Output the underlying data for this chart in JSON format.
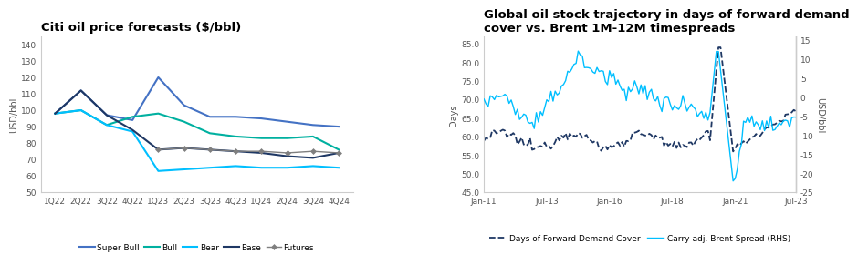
{
  "chart1": {
    "title": "Citi oil price forecasts ($/bbl)",
    "ylabel": "USD/bbl",
    "ylim": [
      50,
      145
    ],
    "yticks": [
      50,
      60,
      70,
      80,
      90,
      100,
      110,
      120,
      130,
      140
    ],
    "xlabels": [
      "1Q22",
      "2Q22",
      "3Q22",
      "4Q22",
      "1Q23",
      "2Q23",
      "3Q23",
      "4Q23",
      "1Q24",
      "2Q24",
      "3Q24",
      "4Q24"
    ],
    "series": {
      "Super Bull": {
        "color": "#4472C4",
        "values": [
          98,
          112,
          97,
          94,
          120,
          103,
          96,
          96,
          95,
          93,
          91,
          90
        ],
        "linestyle": "-",
        "marker": null,
        "linewidth": 1.5
      },
      "Bull": {
        "color": "#00B0A0",
        "values": [
          98,
          100,
          91,
          96,
          98,
          93,
          86,
          84,
          83,
          83,
          84,
          76
        ],
        "linestyle": "-",
        "marker": null,
        "linewidth": 1.5
      },
      "Bear": {
        "color": "#00BFFF",
        "values": [
          98,
          100,
          91,
          87,
          63,
          64,
          65,
          66,
          65,
          65,
          66,
          65
        ],
        "linestyle": "-",
        "marker": null,
        "linewidth": 1.5
      },
      "Base": {
        "color": "#1F3864",
        "values": [
          98,
          112,
          97,
          88,
          76,
          77,
          76,
          75,
          74,
          72,
          71,
          74
        ],
        "linestyle": "-",
        "marker": null,
        "linewidth": 1.5
      },
      "Futures": {
        "color": "#7F7F7F",
        "values": [
          null,
          null,
          null,
          null,
          76,
          77,
          76,
          75,
          75,
          74,
          75,
          74
        ],
        "linestyle": "-",
        "marker": "D",
        "markersize": 3,
        "linewidth": 1.0
      }
    },
    "legend_order": [
      "Super Bull",
      "Bull",
      "Bear",
      "Base",
      "Futures"
    ]
  },
  "chart2": {
    "title": "Global oil stock trajectory in days of forward demand\ncover vs. Brent 1M-12M timespreads",
    "ylabel_left": "Days",
    "ylabel_right": "USD/bbl",
    "ylim_left": [
      45,
      87
    ],
    "ylim_right": [
      -25,
      16
    ],
    "yticks_left": [
      45.0,
      50.0,
      55.0,
      60.0,
      65.0,
      70.0,
      75.0,
      80.0,
      85.0
    ],
    "yticks_right": [
      -25,
      -20,
      -15,
      -10,
      -5,
      0,
      5,
      10,
      15
    ],
    "xtick_labels": [
      "Jan-11",
      "Jul-13",
      "Jan-16",
      "Jul-18",
      "Jan-21",
      "Jul-23"
    ],
    "demand_color": "#1F3864",
    "spread_color": "#00BFFF"
  },
  "background_color": "#FFFFFF",
  "title_fontsize": 9.5,
  "label_fontsize": 7,
  "tick_fontsize": 6.5,
  "legend_fontsize": 6.5
}
